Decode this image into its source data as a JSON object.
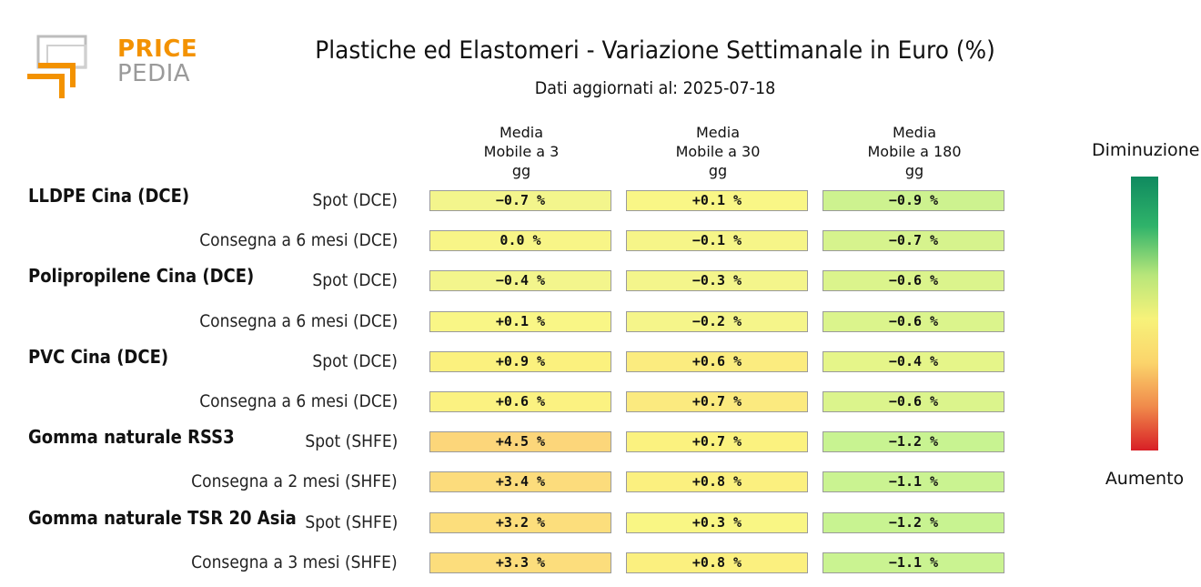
{
  "logo": {
    "line1": "PRICE",
    "line2": "PEDIA"
  },
  "title": "Plastiche ed Elastomeri - Variazione Settimanale in Euro (%)",
  "subtitle": "Dati aggiornati al: 2025-07-18",
  "columns": [
    {
      "line1": "Media",
      "line2": "Mobile a 3",
      "line3": "gg"
    },
    {
      "line1": "Media",
      "line2": "Mobile a 30",
      "line3": "gg"
    },
    {
      "line1": "Media",
      "line2": "Mobile a 180",
      "line3": "gg"
    }
  ],
  "legend": {
    "top": "Diminuzione",
    "bottom": "Aumento",
    "colors": [
      "#0f8a5f",
      "#2fb36a",
      "#b8e67a",
      "#f7f27a",
      "#fbd46b",
      "#f08a4b",
      "#d81f26"
    ]
  },
  "chart_data": {
    "type": "table",
    "title": "Plastiche ed Elastomeri - Variazione Settimanale in Euro (%)",
    "subtitle": "Dati aggiornati al: 2025-07-18",
    "columns": [
      "Media Mobile a 3 gg",
      "Media Mobile a 30 gg",
      "Media Mobile a 180 gg"
    ],
    "rows": [
      {
        "group": "LLDPE Cina (DCE)",
        "label": "Spot (DCE)",
        "values": [
          -0.7,
          0.1,
          -0.9
        ],
        "texts": [
          "-0.7 %",
          "+0.1 %",
          "-0.9 %"
        ],
        "colors": [
          "#f3f58c",
          "#f9f686",
          "#cdf28f"
        ]
      },
      {
        "group": "",
        "label": "Consegna a 6 mesi (DCE)",
        "values": [
          0.0,
          -0.1,
          -0.7
        ],
        "texts": [
          "0.0 %",
          "-0.1 %",
          "-0.7 %"
        ],
        "colors": [
          "#f8f587",
          "#f6f588",
          "#d6f38d"
        ]
      },
      {
        "group": "Polipropilene Cina (DCE)",
        "label": "Spot (DCE)",
        "values": [
          -0.4,
          -0.3,
          -0.6
        ],
        "texts": [
          "-0.4 %",
          "-0.3 %",
          "-0.6 %"
        ],
        "colors": [
          "#f3f58c",
          "#f4f58b",
          "#dbf48c"
        ]
      },
      {
        "group": "",
        "label": "Consegna a 6 mesi (DCE)",
        "values": [
          0.1,
          -0.2,
          -0.6
        ],
        "texts": [
          "+0.1 %",
          "-0.2 %",
          "-0.6 %"
        ],
        "colors": [
          "#f9f686",
          "#f5f58a",
          "#dbf48c"
        ]
      },
      {
        "group": "PVC Cina (DCE)",
        "label": "Spot (DCE)",
        "values": [
          0.9,
          0.6,
          -0.4
        ],
        "texts": [
          "+0.9 %",
          "+0.6 %",
          "-0.4 %"
        ],
        "colors": [
          "#fbf17e",
          "#fbec7f",
          "#e5f589"
        ]
      },
      {
        "group": "",
        "label": "Consegna a 6 mesi (DCE)",
        "values": [
          0.6,
          0.7,
          -0.6
        ],
        "texts": [
          "+0.6 %",
          "+0.7 %",
          "-0.6 %"
        ],
        "colors": [
          "#fbf281",
          "#fbea7f",
          "#dbf48c"
        ]
      },
      {
        "group": "Gomma naturale RSS3",
        "label": "Spot (SHFE)",
        "values": [
          4.5,
          0.7,
          -1.2
        ],
        "texts": [
          "+4.5 %",
          "+0.7 %",
          "-1.2 %"
        ],
        "colors": [
          "#fcd67a",
          "#fbf27f",
          "#c8f391"
        ]
      },
      {
        "group": "",
        "label": "Consegna a 2 mesi (SHFE)",
        "values": [
          3.4,
          0.8,
          -1.1
        ],
        "texts": [
          "+3.4 %",
          "+0.8 %",
          "-1.1 %"
        ],
        "colors": [
          "#fcdc7c",
          "#fbf07f",
          "#caf391"
        ]
      },
      {
        "group": "Gomma naturale TSR 20 Asia",
        "label": "Spot (SHFE)",
        "values": [
          3.2,
          0.3,
          -1.2
        ],
        "texts": [
          "+3.2 %",
          "+0.3 %",
          "-1.2 %"
        ],
        "colors": [
          "#fcde7c",
          "#f9f684",
          "#c8f391"
        ]
      },
      {
        "group": "",
        "label": "Consegna a 3 mesi (SHFE)",
        "values": [
          3.3,
          0.8,
          -1.1
        ],
        "texts": [
          "+3.3 %",
          "+0.8 %",
          "-1.1 %"
        ],
        "colors": [
          "#fcdd7c",
          "#fbf07f",
          "#caf391"
        ]
      }
    ]
  }
}
